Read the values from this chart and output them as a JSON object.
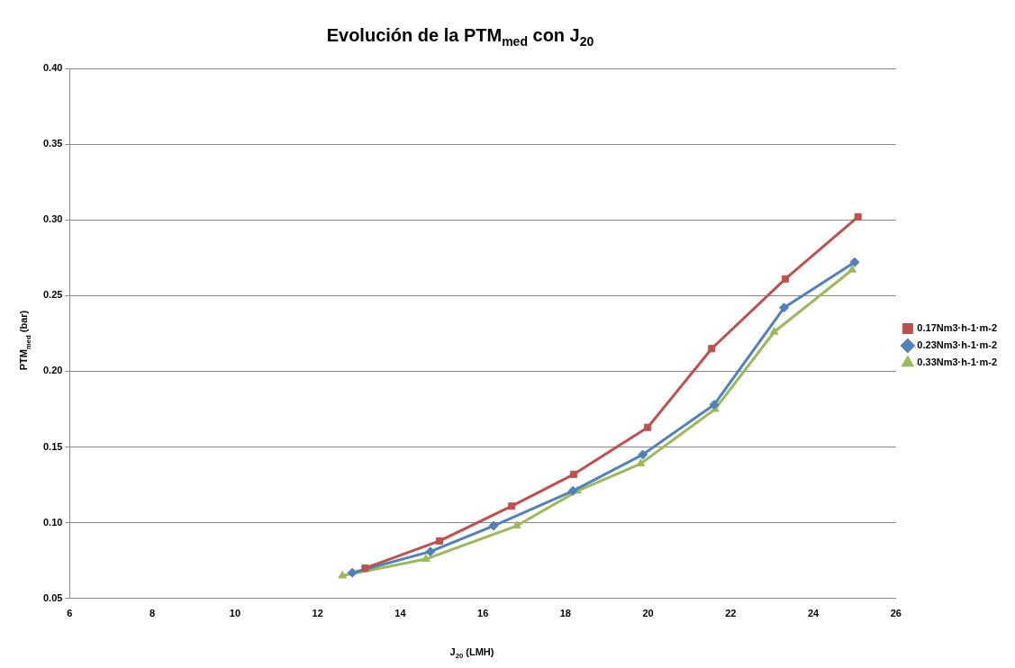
{
  "chart_data": {
    "type": "line",
    "title": "Evolución de la PTM$_{med}$ con J$_{20}$",
    "xlabel": "J$_{20}$ (LMH)",
    "ylabel": "PTM$_{med}$ (bar)",
    "xlim": [
      6,
      26
    ],
    "xticks": [
      6,
      8,
      10,
      12,
      14,
      16,
      18,
      20,
      22,
      24,
      26
    ],
    "ylim": [
      0.05,
      0.4
    ],
    "yticks": [
      {
        "value": 0.05,
        "label": "0.05"
      },
      {
        "value": 0.1,
        "label": "0.10"
      },
      {
        "value": 0.15,
        "label": "0.15"
      },
      {
        "value": 0.2,
        "label": "0.20"
      },
      {
        "value": 0.25,
        "label": "0.25"
      },
      {
        "value": 0.3,
        "label": "0.30"
      },
      {
        "value": 0.35,
        "label": "0.35"
      },
      {
        "value": 0.4,
        "label": "0.40"
      }
    ],
    "grid": "y",
    "legend": "right",
    "line_style": "solid",
    "series": [
      {
        "name": "0.17Nm3·h-1·m-2",
        "color": "#c0504d",
        "marker": "square",
        "x": [
          13.15,
          14.95,
          16.7,
          18.2,
          19.99,
          21.54,
          23.32,
          25.08
        ],
        "values": [
          0.07,
          0.088,
          0.111,
          0.132,
          0.163,
          0.215,
          0.261,
          0.302
        ]
      },
      {
        "name": "0.23Nm3·h-1·m-2",
        "color": "#4f81bd",
        "marker": "diamond",
        "x": [
          12.84,
          14.73,
          16.26,
          18.18,
          19.87,
          21.6,
          23.29,
          25.0
        ],
        "values": [
          0.067,
          0.081,
          0.098,
          0.121,
          0.145,
          0.178,
          0.242,
          0.272
        ]
      },
      {
        "name": "0.33Nm3·h-1·m-2",
        "color": "#9bbb59",
        "marker": "triangle",
        "x": [
          12.6,
          14.62,
          16.82,
          18.29,
          19.82,
          21.62,
          23.05,
          24.94
        ],
        "values": [
          0.065,
          0.076,
          0.098,
          0.121,
          0.139,
          0.175,
          0.226,
          0.267
        ]
      }
    ]
  }
}
